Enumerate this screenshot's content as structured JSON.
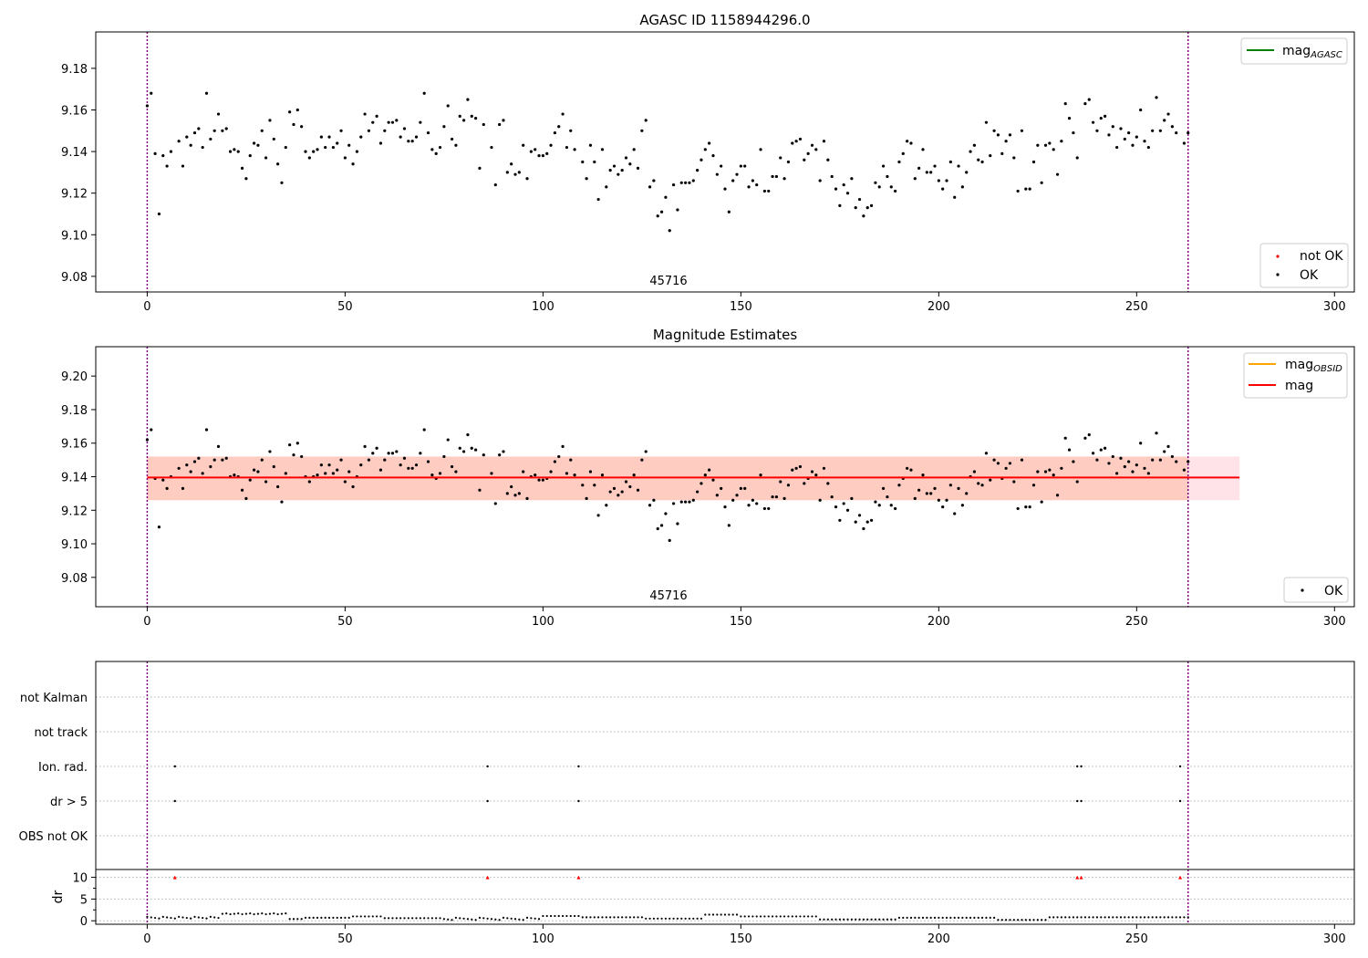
{
  "chart_data": [
    {
      "type": "scatter",
      "title": "AGASC ID 1158944296.0",
      "annotation": "45716",
      "xlim": [
        -13,
        305
      ],
      "ylim": [
        9.0725,
        9.1975
      ],
      "xticks": [
        0,
        50,
        100,
        150,
        200,
        250,
        300
      ],
      "yticks": [
        9.08,
        9.1,
        9.12,
        9.14,
        9.16,
        9.18
      ],
      "ytick_labels": [
        "9.08",
        "9.10",
        "9.12",
        "9.14",
        "9.16",
        "9.18"
      ],
      "vlines": [
        0,
        263
      ],
      "legend_upper": {
        "placement": "top-right",
        "label": "mag",
        "sub": "AGASC",
        "color": "#008000"
      },
      "legend_lower": {
        "placement": "bottom-right",
        "items": [
          {
            "label": "not OK",
            "color": "#ff0000"
          },
          {
            "label": "OK",
            "color": "#000000"
          }
        ]
      }
    },
    {
      "type": "scatter",
      "title": "Magnitude Estimates",
      "annotation": "45716",
      "xlim": [
        -13,
        305
      ],
      "ylim": [
        9.0625,
        9.2175
      ],
      "xticks": [
        0,
        50,
        100,
        150,
        200,
        250,
        300
      ],
      "yticks": [
        9.08,
        9.1,
        9.12,
        9.14,
        9.16,
        9.18,
        9.2
      ],
      "ytick_labels": [
        "9.08",
        "9.10",
        "9.12",
        "9.14",
        "9.16",
        "9.18",
        "9.20"
      ],
      "vlines": [
        0,
        263
      ],
      "mag_line": 9.1395,
      "band_inner": [
        9.126,
        9.152
      ],
      "band_outer": [
        9.126,
        9.152
      ],
      "band_x": [
        0,
        276
      ],
      "legend_upper": {
        "placement": "top-right",
        "items": [
          {
            "label": "mag",
            "sub": "OBSID",
            "color": "#ffa500"
          },
          {
            "label": "mag",
            "sub": "",
            "color": "#ff0000"
          }
        ]
      },
      "legend_lower": {
        "placement": "bottom-right",
        "items": [
          {
            "label": "OK",
            "color": "#000000"
          }
        ]
      }
    },
    {
      "type": "scatter",
      "title": "",
      "xlim": [
        -13,
        305
      ],
      "xticks": [
        0,
        50,
        100,
        150,
        200,
        250,
        300
      ],
      "categories": [
        "OBS not OK",
        "dr > 5",
        "Ion. rad.",
        "not track",
        "not Kalman"
      ],
      "flags": {
        "dr > 5": [
          7,
          86,
          109,
          235,
          236,
          261
        ],
        "Ion. rad.": [
          7,
          86,
          109,
          235,
          236,
          261
        ]
      },
      "vlines": [
        0,
        263
      ]
    },
    {
      "type": "scatter",
      "title": "",
      "ylabel": "dr",
      "xlim": [
        -13,
        305
      ],
      "ylim": [
        -0.8,
        11.8
      ],
      "xticks": [
        0,
        50,
        100,
        150,
        200,
        250,
        300
      ],
      "yticks": [
        0,
        5,
        10
      ],
      "ytick_labels": [
        "0",
        "5",
        "10"
      ],
      "vlines": [
        0,
        263
      ],
      "clipped_points_x": [
        7,
        86,
        109,
        235,
        236,
        261
      ],
      "clipped_y": 10
    }
  ],
  "colors": {
    "ok": "#000000",
    "not_ok": "#ff0000",
    "vline": "#800080",
    "mag_line": "#ff0000",
    "band_outer": "#ffc0cb",
    "band_inner": "#ffa07a",
    "grid": "#b0b0b0"
  }
}
